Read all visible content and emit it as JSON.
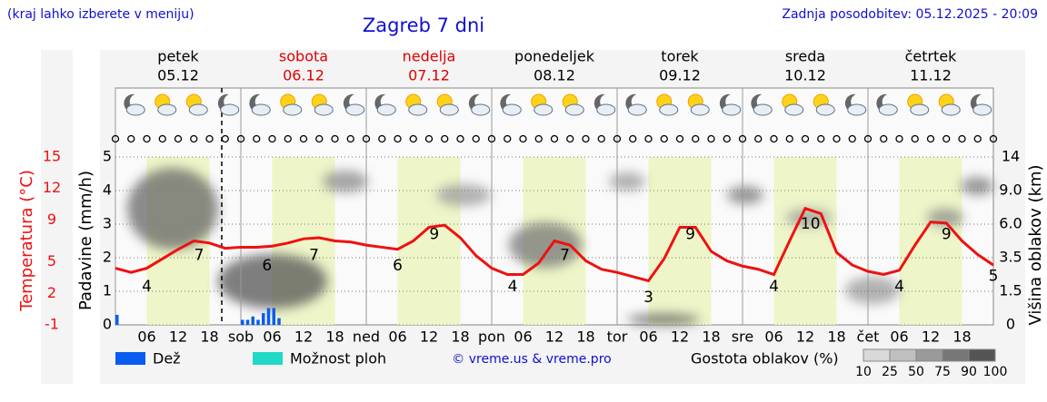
{
  "header": {
    "note": "(kraj lahko izberete v meniju)",
    "title": "Zagreb 7 dni",
    "updated": "Zadnja posodobitev: 05.12.2025 - 20:09"
  },
  "days": [
    {
      "name": "petek",
      "date": "05.12",
      "color": "#000000"
    },
    {
      "name": "sobota",
      "date": "06.12",
      "color": "#e00000"
    },
    {
      "name": "nedelja",
      "date": "07.12",
      "color": "#e00000"
    },
    {
      "name": "ponedeljek",
      "date": "08.12",
      "color": "#000000"
    },
    {
      "name": "torek",
      "date": "09.12",
      "color": "#000000"
    },
    {
      "name": "sreda",
      "date": "10.12",
      "color": "#000000"
    },
    {
      "name": "četrtek",
      "date": "11.12",
      "color": "#000000"
    }
  ],
  "chart_data": {
    "type": "line",
    "xlim": [
      0,
      168
    ],
    "xticks": [
      {
        "value": 6,
        "label": "06"
      },
      12,
      18,
      {
        "value": 24,
        "label": "sob"
      },
      {
        "value": 30,
        "label": "06"
      },
      {
        "value": 36,
        "label": "12"
      },
      {
        "value": 42,
        "label": "18"
      },
      {
        "value": 48,
        "label": "ned"
      },
      {
        "value": 54,
        "label": "06"
      },
      {
        "value": 60,
        "label": "12"
      },
      {
        "value": 66,
        "label": "18"
      },
      {
        "value": 72,
        "label": "pon"
      },
      {
        "value": 78,
        "label": "06"
      },
      {
        "value": 84,
        "label": "12"
      },
      {
        "value": 90,
        "label": "18"
      },
      {
        "value": 96,
        "label": "tor"
      },
      {
        "value": 102,
        "label": "06"
      },
      {
        "value": 108,
        "label": "12"
      },
      {
        "value": 114,
        "label": "18"
      },
      {
        "value": 120,
        "label": "sre"
      },
      {
        "value": 126,
        "label": "06"
      },
      {
        "value": 132,
        "label": "12"
      },
      {
        "value": 138,
        "label": "18"
      },
      {
        "value": 144,
        "label": "čet"
      },
      {
        "value": 150,
        "label": "06"
      },
      {
        "value": 156,
        "label": "12"
      },
      {
        "value": 162,
        "label": "18"
      }
    ],
    "temperature": {
      "axis_label": "Temperatura (°C)",
      "color": "#ee1111",
      "ylim": [
        -1,
        15
      ],
      "yticks": [
        -1,
        2,
        5,
        9,
        12,
        15
      ],
      "x": [
        0,
        3,
        6,
        9,
        12,
        15,
        18,
        21,
        24,
        27,
        30,
        33,
        36,
        39,
        42,
        45,
        48,
        51,
        54,
        57,
        60,
        63,
        66,
        69,
        72,
        75,
        78,
        81,
        84,
        87,
        90,
        93,
        96,
        99,
        102,
        105,
        108,
        111,
        114,
        117,
        120,
        123,
        126,
        129,
        132,
        135,
        138,
        141,
        144,
        147,
        150,
        153,
        156,
        159,
        162,
        165,
        168
      ],
      "values": [
        4.4,
        4.0,
        4.4,
        5.3,
        6.2,
        7.0,
        6.8,
        6.3,
        6.4,
        6.4,
        6.5,
        6.8,
        7.2,
        7.3,
        7.0,
        6.9,
        6.6,
        6.4,
        6.2,
        7.0,
        8.3,
        8.5,
        7.3,
        5.6,
        4.4,
        3.8,
        3.8,
        4.9,
        7.0,
        6.6,
        5.1,
        4.3,
        4.0,
        3.6,
        3.2,
        5.3,
        8.3,
        8.3,
        6.0,
        5.1,
        4.6,
        4.3,
        3.8,
        7.0,
        10.1,
        9.6,
        5.9,
        4.7,
        4.1,
        3.8,
        4.2,
        6.6,
        8.8,
        8.7,
        7.0,
        5.7,
        4.7
      ],
      "extremes": {
        "x": [
          6,
          16,
          29,
          38,
          54,
          61,
          76,
          86,
          102,
          110,
          126,
          133,
          150,
          159,
          168
        ],
        "values": [
          4,
          7,
          6,
          7,
          6,
          9,
          4,
          7,
          3,
          9,
          4,
          10,
          4,
          9,
          5
        ]
      }
    },
    "precipitation": {
      "axis_label": "Padavine (mm/h)",
      "ylim": [
        0,
        5
      ],
      "yticks": [
        0,
        1,
        2,
        3,
        4,
        5
      ],
      "series": [
        {
          "name": "Dež",
          "color": "#0a5cf0",
          "x": [
            0,
            24,
            25,
            26,
            27,
            28,
            29,
            30,
            31
          ],
          "values": [
            0.3,
            0.15,
            0.15,
            0.25,
            0.15,
            0.35,
            0.5,
            0.5,
            0.2
          ]
        },
        {
          "name": "Možnost ploh",
          "color": "#1fd9c6"
        }
      ]
    },
    "cloud_height": {
      "axis_label": "Višina oblakov (km)",
      "yticks": [
        0,
        1.5,
        3.5,
        {
          "value": 6,
          "label": "6.0"
        },
        {
          "value": 9,
          "label": "9.0"
        },
        14
      ]
    },
    "cloud_density": {
      "label": "Gostota oblakov (%)",
      "levels": [
        10,
        25,
        50,
        75,
        90,
        100
      ]
    },
    "credit": "© vreme.us & vreme.pro"
  }
}
